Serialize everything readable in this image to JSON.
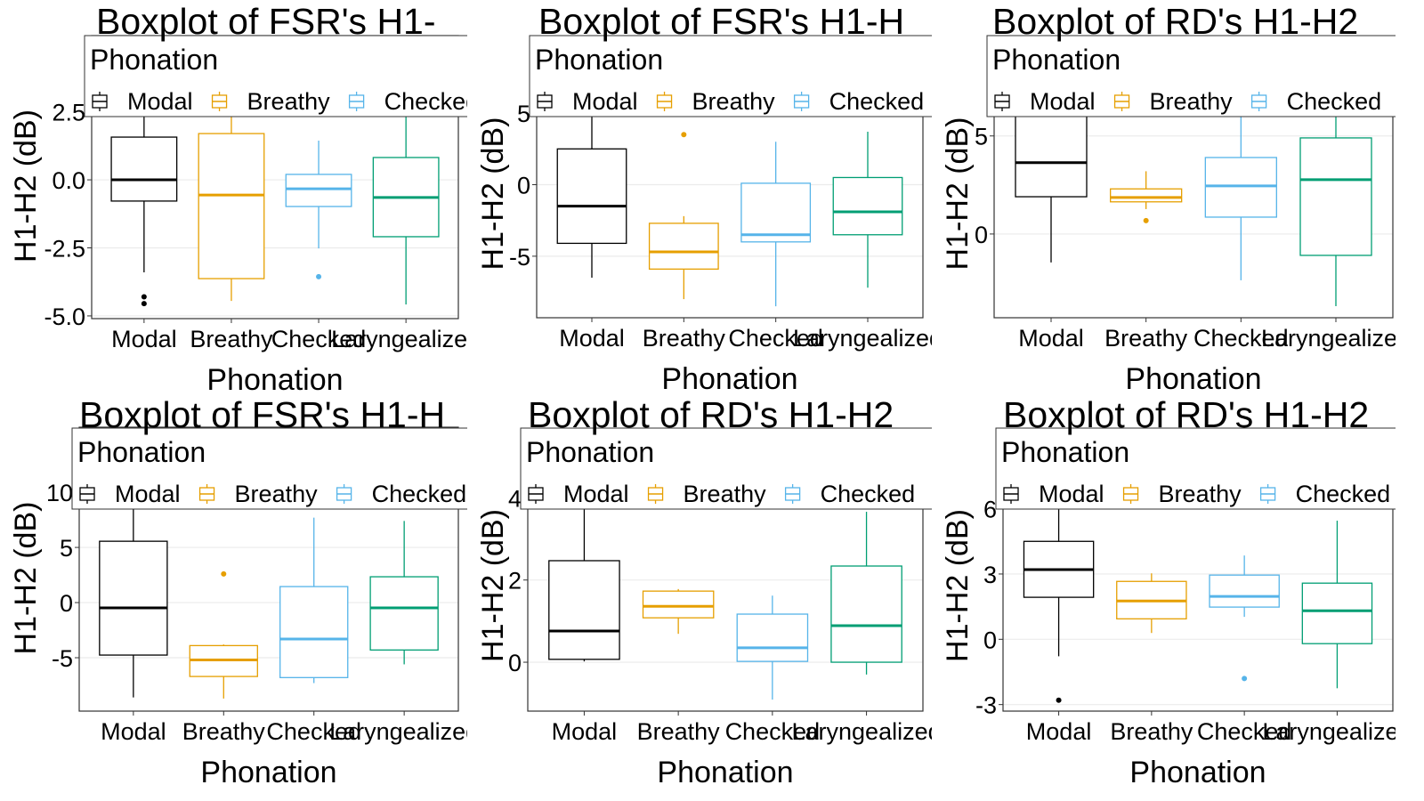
{
  "chart_data": [
    {
      "type": "box",
      "title": "Boxplot of FSR's H1-",
      "x_label": "Phonation",
      "y_label": "H1-H2 (dB)",
      "legend_title": "Phonation",
      "categories": [
        "Modal",
        "Breathy",
        "Checked",
        "Laryngealized"
      ],
      "ylim": [
        -5.1,
        5.3
      ],
      "yticks": [
        {
          "value": -5,
          "label": "-5.0"
        },
        -2.5,
        {
          "value": 0,
          "label": "0.0"
        },
        2.5
      ],
      "grid": true,
      "series": [
        {
          "name": "Modal",
          "color": "#000000",
          "whisker_low": -3.4,
          "q1": -0.78,
          "median": 0,
          "q3": 1.57,
          "whisker_high": 3.2,
          "outliers": [
            -4.3,
            -4.55
          ]
        },
        {
          "name": "Breathy",
          "color": "#E69F00",
          "whisker_low": -4.45,
          "q1": -3.63,
          "median": -0.56,
          "q3": 1.7,
          "whisker_high": 3.5,
          "outliers": []
        },
        {
          "name": "Checked",
          "color": "#56B4E9",
          "whisker_low": -2.52,
          "q1": -0.98,
          "median": -0.33,
          "q3": 0.2,
          "whisker_high": 1.44,
          "outliers": [
            -3.56
          ]
        },
        {
          "name": "Laryngealized",
          "color": "#009E73",
          "whisker_low": -4.58,
          "q1": -2.09,
          "median": -0.65,
          "q3": 0.82,
          "whisker_high": 2.9,
          "outliers": []
        }
      ]
    },
    {
      "type": "box",
      "title": "Boxplot of FSR's H1-H",
      "x_label": "Phonation",
      "y_label": "H1-H2 (dB)",
      "legend_title": "Phonation",
      "categories": [
        "Modal",
        "Breathy",
        "Checked",
        "Laryngealized"
      ],
      "ylim": [
        -9.3,
        9.3
      ],
      "yticks": [
        -5,
        0,
        5
      ],
      "grid": true,
      "series": [
        {
          "name": "Modal",
          "color": "#000000",
          "whisker_low": -6.5,
          "q1": -4.1,
          "median": -1.5,
          "q3": 2.5,
          "whisker_high": 6,
          "outliers": []
        },
        {
          "name": "Breathy",
          "color": "#E69F00",
          "whisker_low": -8.0,
          "q1": -5.9,
          "median": -4.7,
          "q3": -2.7,
          "whisker_high": -2.2,
          "outliers": [
            3.5
          ]
        },
        {
          "name": "Checked",
          "color": "#56B4E9",
          "whisker_low": -8.5,
          "q1": -4.0,
          "median": -3.5,
          "q3": 0.1,
          "whisker_high": 3.0,
          "outliers": []
        },
        {
          "name": "Laryngealized",
          "color": "#009E73",
          "whisker_low": -7.2,
          "q1": -3.5,
          "median": -1.9,
          "q3": 0.5,
          "whisker_high": 3.7,
          "outliers": []
        }
      ]
    },
    {
      "type": "box",
      "title": "Boxplot of RD's H1-H2",
      "x_label": "Phonation",
      "y_label": "H1-H2 (dB)",
      "legend_title": "Phonation",
      "categories": [
        "Modal",
        "Breathy",
        "Checked",
        "Laryngealized"
      ],
      "ylim": [
        -4.27,
        9.3
      ],
      "yticks": [
        0,
        5
      ],
      "grid": true,
      "series": [
        {
          "name": "Modal",
          "color": "#000000",
          "whisker_low": -1.45,
          "q1": 1.9,
          "median": 3.64,
          "q3": 6.5,
          "whisker_high": 8,
          "outliers": []
        },
        {
          "name": "Breathy",
          "color": "#E69F00",
          "whisker_low": 1.27,
          "q1": 1.64,
          "median": 1.86,
          "q3": 2.3,
          "whisker_high": 3.2,
          "outliers": [
            0.68
          ]
        },
        {
          "name": "Checked",
          "color": "#56B4E9",
          "whisker_low": -2.36,
          "q1": 0.86,
          "median": 2.45,
          "q3": 3.9,
          "whisker_high": 6.0,
          "outliers": []
        },
        {
          "name": "Laryngealized",
          "color": "#009E73",
          "whisker_low": -3.68,
          "q1": -1.09,
          "median": 2.77,
          "q3": 4.9,
          "whisker_high": 6.5,
          "outliers": []
        }
      ]
    },
    {
      "type": "box",
      "title": "Boxplot of FSR's H1-H",
      "x_label": "Phonation",
      "y_label": "H1-H2 (dB)",
      "legend_title": "Phonation",
      "categories": [
        "Modal",
        "Breathy",
        "Checked",
        "Laryngealized"
      ],
      "ylim": [
        -9.84,
        15.9
      ],
      "yticks": [
        -5,
        0,
        5,
        10
      ],
      "grid": true,
      "series": [
        {
          "name": "Modal",
          "color": "#000000",
          "whisker_low": -8.6,
          "q1": -4.76,
          "median": -0.48,
          "q3": 5.56,
          "whisker_high": 10.5,
          "outliers": []
        },
        {
          "name": "Breathy",
          "color": "#E69F00",
          "whisker_low": -8.7,
          "q1": -6.7,
          "median": -5.2,
          "q3": -3.9,
          "whisker_high": -3.8,
          "outliers": [
            2.6
          ]
        },
        {
          "name": "Checked",
          "color": "#56B4E9",
          "whisker_low": -7.3,
          "q1": -6.8,
          "median": -3.3,
          "q3": 1.45,
          "whisker_high": 7.7,
          "outliers": []
        },
        {
          "name": "Laryngealized",
          "color": "#009E73",
          "whisker_low": -5.6,
          "q1": -4.3,
          "median": -0.48,
          "q3": 2.34,
          "whisker_high": 7.4,
          "outliers": []
        }
      ]
    },
    {
      "type": "box",
      "title": "Boxplot of RD's H1-H2",
      "x_label": "Phonation",
      "y_label": "H1-H2 (dB)",
      "legend_title": "Phonation",
      "categories": [
        "Modal",
        "Breathy",
        "Checked",
        "Laryngealized"
      ],
      "ylim": [
        -1.19,
        5.35
      ],
      "yticks": [
        0,
        2,
        4
      ],
      "grid": true,
      "series": [
        {
          "name": "Modal",
          "color": "#000000",
          "whisker_low": 0.02,
          "q1": 0.07,
          "median": 0.76,
          "q3": 2.47,
          "whisker_high": 5,
          "outliers": []
        },
        {
          "name": "Breathy",
          "color": "#E69F00",
          "whisker_low": 0.69,
          "q1": 1.08,
          "median": 1.36,
          "q3": 1.73,
          "whisker_high": 1.78,
          "outliers": []
        },
        {
          "name": "Checked",
          "color": "#56B4E9",
          "whisker_low": -0.91,
          "q1": 0.02,
          "median": 0.35,
          "q3": 1.17,
          "whisker_high": 1.62,
          "outliers": []
        },
        {
          "name": "Laryngealized",
          "color": "#009E73",
          "whisker_low": -0.3,
          "q1": 0,
          "median": 0.89,
          "q3": 2.34,
          "whisker_high": 3.66,
          "outliers": []
        }
      ]
    },
    {
      "type": "box",
      "title": "Boxplot of RD's H1-H2",
      "x_label": "Phonation",
      "y_label": "H1-H2 (dB)",
      "legend_title": "Phonation",
      "categories": [
        "Modal",
        "Breathy",
        "Checked",
        "Laryngealized"
      ],
      "ylim": [
        -3.3,
        9.05
      ],
      "yticks": [
        -3,
        0,
        3,
        6
      ],
      "grid": true,
      "series": [
        {
          "name": "Modal",
          "color": "#000000",
          "whisker_low": -0.78,
          "q1": 1.93,
          "median": 3.2,
          "q3": 4.5,
          "whisker_high": 7,
          "outliers": [
            -2.8
          ]
        },
        {
          "name": "Breathy",
          "color": "#E69F00",
          "whisker_low": 0.29,
          "q1": 0.94,
          "median": 1.76,
          "q3": 2.66,
          "whisker_high": 3.03,
          "outliers": []
        },
        {
          "name": "Checked",
          "color": "#56B4E9",
          "whisker_low": 1.03,
          "q1": 1.48,
          "median": 1.97,
          "q3": 2.95,
          "whisker_high": 3.85,
          "outliers": [
            -1.8
          ]
        },
        {
          "name": "Laryngealized",
          "color": "#009E73",
          "whisker_low": -2.25,
          "q1": -0.2,
          "median": 1.31,
          "q3": 2.58,
          "whisker_high": 5.45,
          "outliers": []
        }
      ]
    }
  ]
}
